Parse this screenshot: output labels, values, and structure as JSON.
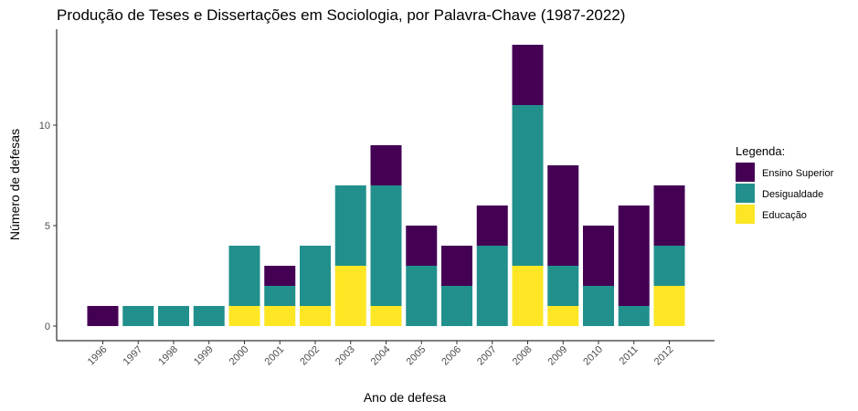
{
  "chart_data": {
    "type": "bar",
    "stacked": true,
    "title": "Produção de Teses e Dissertações em Sociologia, por Palavra-Chave (1987-2022)",
    "xlabel": "Ano de defesa",
    "ylabel": "Número de defesas",
    "categories": [
      "1996",
      "1997",
      "1998",
      "1999",
      "2000",
      "2001",
      "2002",
      "2003",
      "2004",
      "2005",
      "2006",
      "2007",
      "2008",
      "2009",
      "2010",
      "2011",
      "2012"
    ],
    "ylim": [
      0,
      14.7
    ],
    "yticks": [
      0,
      5,
      10
    ],
    "grid": false,
    "legend": {
      "title": "Legenda:",
      "position": "right",
      "entries": [
        "Ensino Superior",
        "Desigualdade",
        "Educação"
      ]
    },
    "series": [
      {
        "name": "Educação",
        "color": "#FDE725",
        "values": [
          0,
          0,
          0,
          0,
          1,
          1,
          1,
          3,
          1,
          0,
          0,
          0,
          3,
          1,
          0,
          0,
          2
        ]
      },
      {
        "name": "Desigualdade",
        "color": "#21908C",
        "values": [
          0,
          1,
          1,
          1,
          3,
          1,
          3,
          4,
          6,
          3,
          2,
          4,
          8,
          2,
          2,
          1,
          2
        ]
      },
      {
        "name": "Ensino Superior",
        "color": "#440154",
        "values": [
          1,
          0,
          0,
          0,
          0,
          1,
          0,
          0,
          2,
          2,
          2,
          2,
          3,
          5,
          3,
          5,
          3
        ]
      }
    ]
  }
}
